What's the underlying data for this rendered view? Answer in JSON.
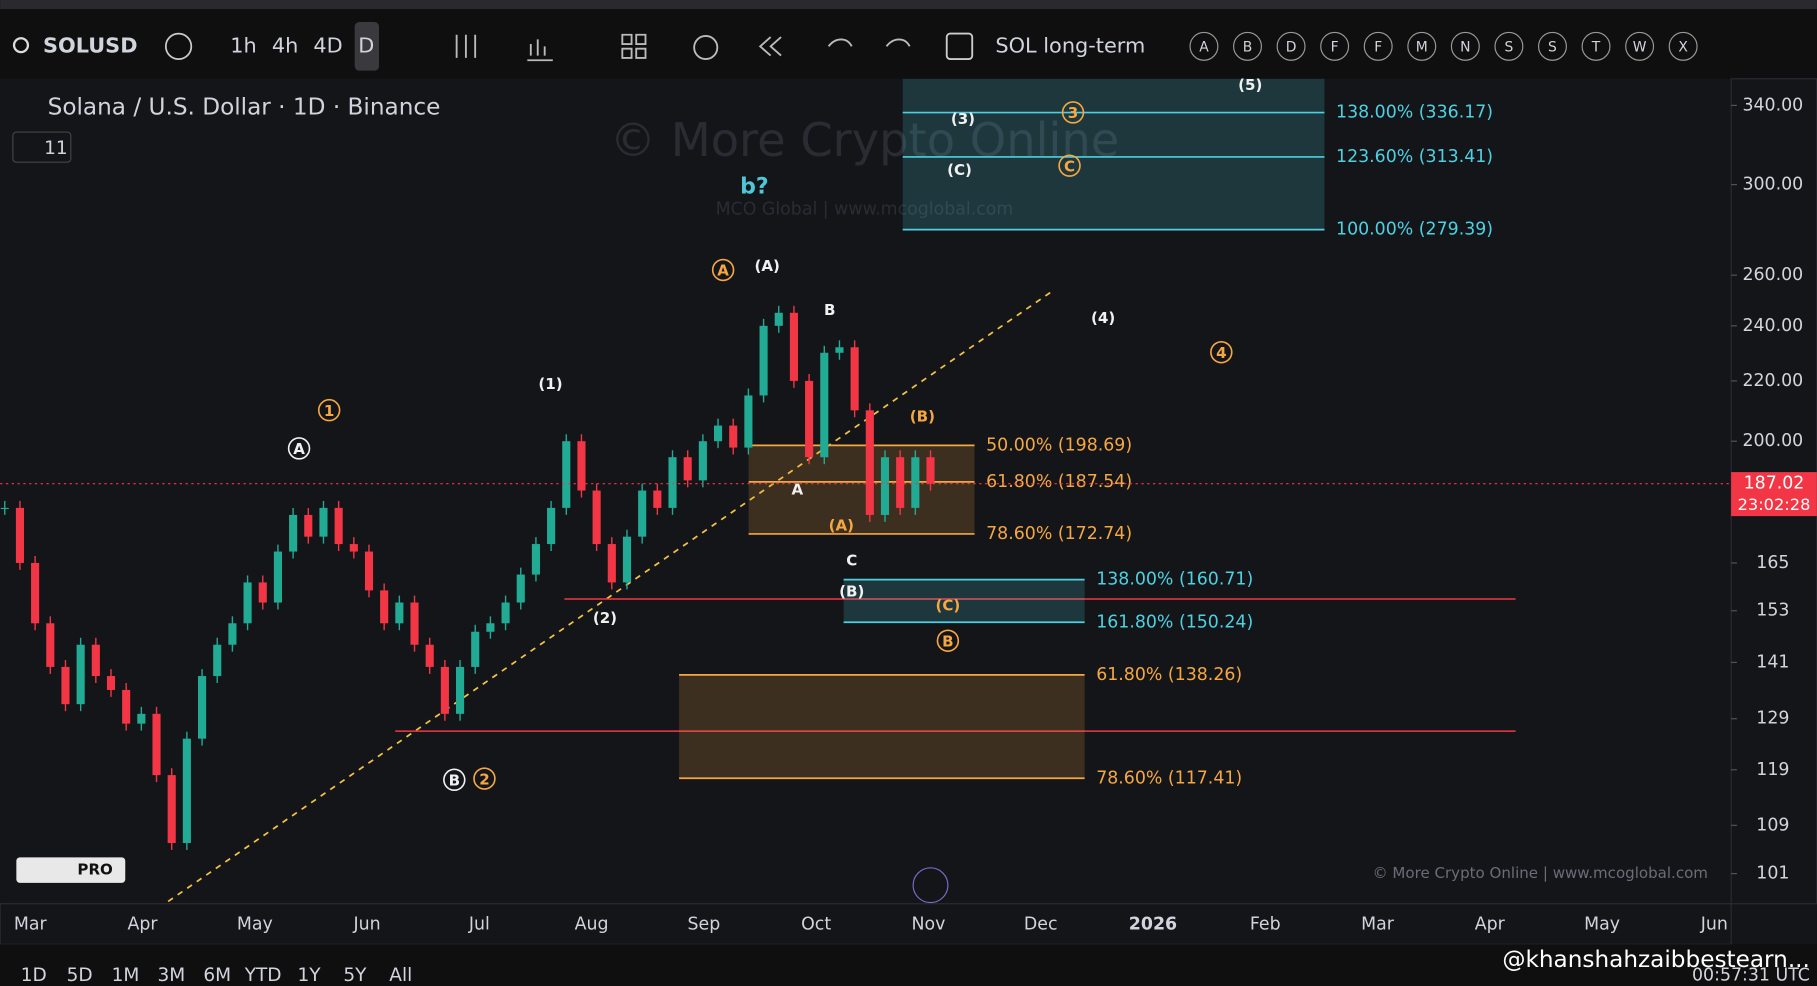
{
  "toolbar": {
    "symbol": "SOLUSD",
    "intervals": [
      "1h",
      "4h",
      "4D",
      "D"
    ],
    "layout_name": "SOL long-term",
    "letters": [
      "A",
      "B",
      "D",
      "F",
      "F",
      "M",
      "N",
      "S",
      "S",
      "T",
      "W",
      "X"
    ]
  },
  "legend": {
    "title": "Solana / U.S. Dollar · 1D · Binance",
    "indicator_count": "11"
  },
  "watermark": {
    "main": "© More Crypto Online",
    "sub": "MCO Global  |  www.mcoglobal.com",
    "footer": "© More Crypto Online  |  www.mcoglobal.com",
    "badge": "PRO"
  },
  "chart_data": {
    "type": "candlestick",
    "log_scale": true,
    "ylim": [
      96.3,
      354.6
    ],
    "yticks": [
      101,
      109,
      119,
      129,
      141,
      153,
      165,
      {
        "value": 200,
        "label": "200.00"
      },
      {
        "value": 220,
        "label": "220.00"
      },
      {
        "value": 240,
        "label": "240.00"
      },
      {
        "value": 260,
        "label": "260.00"
      },
      {
        "value": 300,
        "label": "300.00"
      },
      {
        "value": 340,
        "label": "340.00"
      }
    ],
    "xticks": [
      "Mar",
      "Apr",
      "May",
      "Jun",
      "Jul",
      "Aug",
      "Sep",
      "Oct",
      "Nov",
      "Dec",
      "2026",
      "Feb",
      "Mar",
      "Apr",
      "May",
      "Jun"
    ],
    "up_color": "#22ab94",
    "down_color": "#f23645",
    "closes": [
      180,
      165,
      150,
      140,
      132,
      145,
      138,
      135,
      128,
      130,
      118,
      106,
      125,
      138,
      145,
      150,
      160,
      155,
      168,
      178,
      172,
      180,
      170,
      168,
      158,
      150,
      155,
      145,
      140,
      130,
      140,
      148,
      150,
      155,
      162,
      170,
      180,
      200,
      185,
      170,
      160,
      172,
      185,
      180,
      195,
      188,
      200,
      205,
      198,
      215,
      240,
      245,
      220,
      195,
      230,
      232,
      210,
      178,
      195,
      180,
      195,
      187
    ],
    "last_price": 187.02,
    "countdown": "23:02:28",
    "fib_groups": [
      {
        "color": "#4dd0e1",
        "levels": [
          {
            "label": "138.00% (336.17)",
            "value": 336.17
          },
          {
            "label": "123.60% (313.41)",
            "value": 313.41
          },
          {
            "label": "100.00% (279.39)",
            "value": 279.39
          }
        ]
      },
      {
        "color": "#f5a742",
        "levels": [
          {
            "label": "50.00% (198.69)",
            "value": 198.69
          },
          {
            "label": "61.80% (187.54)",
            "value": 187.54
          },
          {
            "label": "78.60% (172.74)",
            "value": 172.74
          }
        ]
      },
      {
        "color": "#4dd0e1",
        "levels": [
          {
            "label": "138.00% (160.71)",
            "value": 160.71
          },
          {
            "label": "161.80% (150.24)",
            "value": 150.24
          }
        ]
      },
      {
        "color": "#f5a742",
        "levels": [
          {
            "label": "61.80% (138.26)",
            "value": 138.26
          },
          {
            "label": "78.60% (117.41)",
            "value": 117.41
          }
        ]
      }
    ],
    "waves": [
      "1",
      "2",
      "3",
      "4",
      "C",
      "B",
      "A",
      "A",
      "B",
      "(1)",
      "(2)",
      "(A)",
      "B",
      "A",
      "(A)",
      "C",
      "(B)",
      "(C)",
      "(B)",
      "(3)",
      "(C)",
      "(4)",
      "(5)",
      "b?"
    ]
  },
  "range_buttons": [
    "1D",
    "5D",
    "1M",
    "3M",
    "6M",
    "YTD",
    "1Y",
    "5Y",
    "All"
  ],
  "clock": "00:57:31 UTC",
  "handle": "@khanshahzaibbestearn..."
}
